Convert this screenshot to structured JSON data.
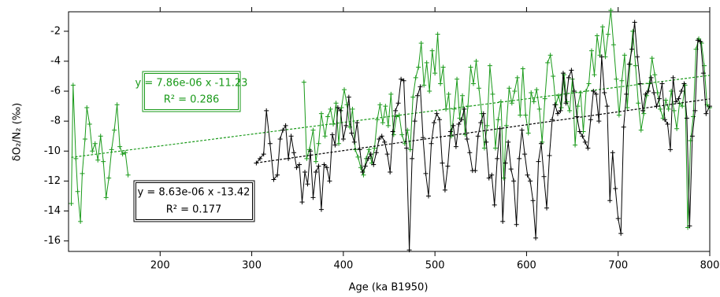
{
  "chart_data": {
    "type": "line",
    "x_label": "Age (ka B1950)",
    "y_label": "δO₂/N₂ (‰)",
    "xlim": [
      100,
      800
    ],
    "xticks": [
      200,
      300,
      400,
      500,
      600,
      700,
      800
    ],
    "ylim": [
      -16.7,
      -0.7
    ],
    "yticks": [
      -2,
      -4,
      -6,
      -8,
      -10,
      -12,
      -14,
      -16
    ],
    "series": [
      {
        "color": "#1a9a1a",
        "trend": {
          "label": "y = 7.86e-06 x -11.23",
          "r2_label": "R² = 0.286",
          "slope": 7.86e-06,
          "intercept": -11.23
        },
        "x": [
          103,
          105,
          108,
          110,
          113,
          115,
          118,
          120,
          123,
          126,
          129,
          132,
          135,
          138,
          141,
          144,
          147,
          150,
          153,
          156,
          159,
          162,
          165,
          250,
          357,
          360,
          363,
          367,
          370,
          373,
          376,
          380,
          383,
          386,
          389,
          392,
          395,
          398,
          401,
          404,
          407,
          410,
          413,
          416,
          419,
          422,
          425,
          428,
          431,
          434,
          437,
          440,
          443,
          446,
          449,
          452,
          455,
          458,
          461,
          464,
          467,
          470,
          473,
          476,
          479,
          482,
          485,
          488,
          491,
          494,
          497,
          500,
          503,
          506,
          509,
          512,
          515,
          518,
          521,
          524,
          527,
          530,
          533,
          536,
          539,
          542,
          545,
          548,
          551,
          554,
          557,
          560,
          563,
          566,
          569,
          572,
          575,
          578,
          581,
          584,
          587,
          590,
          593,
          596,
          599,
          602,
          605,
          608,
          611,
          614,
          617,
          620,
          623,
          626,
          629,
          632,
          635,
          638,
          641,
          644,
          647,
          650,
          653,
          656,
          659,
          662,
          665,
          668,
          671,
          674,
          677,
          680,
          683,
          686,
          689,
          692,
          695,
          698,
          701,
          704,
          707,
          710,
          713,
          716,
          719,
          722,
          725,
          728,
          731,
          734,
          737,
          740,
          743,
          746,
          749,
          752,
          755,
          758,
          761,
          764,
          767,
          770,
          773,
          776,
          779,
          782,
          785,
          788,
          791,
          794,
          797,
          800
        ],
        "values": [
          -13.5,
          -5.6,
          -10.5,
          -12.7,
          -14.7,
          -11.5,
          -9.2,
          -7.1,
          -8.2,
          -10.0,
          -9.5,
          -10.6,
          -9.0,
          -10.7,
          -13.1,
          -11.8,
          -9.9,
          -8.6,
          -6.9,
          -9.7,
          -10.2,
          -10.1,
          -11.6,
          null,
          -5.4,
          -10.5,
          -9.9,
          -8.6,
          -10.7,
          -9.5,
          -7.5,
          -9.0,
          -7.7,
          -7.2,
          -8.2,
          -6.8,
          -9.5,
          -7.1,
          -5.9,
          -6.9,
          -8.4,
          -7.2,
          -9.9,
          -10.4,
          -11.1,
          -11.6,
          -10.5,
          -9.9,
          -10.8,
          -9.8,
          -7.9,
          -6.9,
          -8.1,
          -7.0,
          -8.3,
          -6.2,
          -8.9,
          -7.7,
          -7.6,
          -8.9,
          -9.5,
          -8.6,
          -9.9,
          -6.4,
          -5.1,
          -4.4,
          -2.8,
          -5.6,
          -4.1,
          -6.0,
          -3.3,
          -4.8,
          -2.2,
          -5.5,
          -4.4,
          -7.2,
          -6.2,
          -9.0,
          -7.2,
          -5.2,
          -7.8,
          -6.3,
          -8.9,
          -7.0,
          -4.4,
          -5.5,
          -4.0,
          -5.8,
          -7.5,
          -9.8,
          -8.3,
          -4.3,
          -6.2,
          -9.8,
          -7.9,
          -6.7,
          -11.8,
          -8.3,
          -5.8,
          -6.8,
          -6.0,
          -5.1,
          -7.6,
          -4.5,
          -7.6,
          -8.8,
          -6.1,
          -6.7,
          -5.9,
          -7.2,
          -9.4,
          -6.5,
          -4.1,
          -3.6,
          -5.0,
          -6.9,
          -6.3,
          -7.1,
          -4.9,
          -6.7,
          -7.3,
          -5.2,
          -9.6,
          -7.0,
          -6.1,
          -8.7,
          -6.0,
          -5.5,
          -3.3,
          -4.9,
          -2.3,
          -3.6,
          -1.7,
          -3.7,
          -2.2,
          -0.6,
          -2.9,
          -5.2,
          -7.6,
          -5.3,
          -3.6,
          -7.1,
          -4.2,
          -2.0,
          -4.3,
          -6.8,
          -8.6,
          -7.5,
          -6.3,
          -5.5,
          -3.8,
          -4.9,
          -6.1,
          -7.2,
          -7.8,
          -6.6,
          -7.2,
          -6.0,
          -7.3,
          -8.5,
          -6.8,
          -7.0,
          -5.6,
          -15.1,
          -9.3,
          -7.7,
          -3.2,
          -2.5,
          -2.8,
          -4.3,
          -6.9,
          -7.1
        ]
      },
      {
        "color": "#000000",
        "trend": {
          "label": "y = 8.63e-06 x -13.42",
          "r2_label": "R² = 0.177",
          "slope": 8.63e-06,
          "intercept": -13.42
        },
        "x": [
          305,
          309,
          313,
          316,
          320,
          324,
          328,
          331,
          334,
          337,
          340,
          343,
          346,
          349,
          352,
          355,
          358,
          361,
          364,
          367,
          370,
          373,
          376,
          379,
          382,
          385,
          388,
          391,
          394,
          397,
          400,
          403,
          406,
          409,
          412,
          415,
          418,
          421,
          424,
          427,
          430,
          433,
          436,
          439,
          442,
          445,
          448,
          451,
          454,
          457,
          460,
          463,
          466,
          469,
          472,
          475,
          478,
          481,
          484,
          487,
          490,
          493,
          496,
          499,
          502,
          505,
          508,
          511,
          514,
          517,
          520,
          523,
          526,
          529,
          532,
          535,
          538,
          541,
          544,
          547,
          550,
          553,
          556,
          559,
          562,
          565,
          568,
          571,
          574,
          577,
          580,
          583,
          586,
          589,
          592,
          595,
          598,
          601,
          604,
          607,
          610,
          613,
          616,
          619,
          622,
          625,
          628,
          631,
          634,
          637,
          640,
          643,
          646,
          649,
          652,
          655,
          658,
          661,
          664,
          667,
          670,
          673,
          676,
          679,
          682,
          685,
          688,
          691,
          694,
          697,
          700,
          703,
          706,
          709,
          712,
          715,
          718,
          721,
          724,
          727,
          730,
          733,
          736,
          739,
          742,
          745,
          748,
          751,
          754,
          757,
          760,
          763,
          766,
          769,
          772,
          775,
          778,
          781,
          784,
          787,
          790,
          793,
          796,
          800
        ],
        "values": [
          -10.8,
          -10.5,
          -10.2,
          -7.3,
          -9.5,
          -11.9,
          -11.6,
          -9.2,
          -8.6,
          -8.3,
          -10.5,
          -9.0,
          -10.1,
          -11.1,
          -10.9,
          -13.4,
          -11.4,
          -12.2,
          -10.0,
          -13.1,
          -11.4,
          -11.0,
          -13.9,
          -10.9,
          -11.1,
          -12.0,
          -8.9,
          -9.6,
          -7.1,
          -7.3,
          -9.2,
          -8.3,
          -6.4,
          -8.8,
          -9.4,
          -8.1,
          -9.9,
          -11.4,
          -11.0,
          -10.5,
          -10.2,
          -10.9,
          -10.1,
          -9.2,
          -9.0,
          -9.4,
          -10.2,
          -11.4,
          -8.7,
          -7.3,
          -6.8,
          -5.2,
          -5.3,
          -9.8,
          -16.6,
          -10.5,
          -8.0,
          -6.3,
          -5.7,
          -9.1,
          -11.5,
          -13.0,
          -9.5,
          -8.1,
          -7.5,
          -7.9,
          -10.8,
          -12.6,
          -11.0,
          -8.7,
          -8.3,
          -9.7,
          -8.2,
          -7.9,
          -7.2,
          -9.2,
          -10.1,
          -11.3,
          -11.3,
          -9.0,
          -8.1,
          -7.5,
          -9.4,
          -11.8,
          -11.6,
          -13.6,
          -10.5,
          -8.5,
          -14.7,
          -10.8,
          -9.4,
          -11.2,
          -12.0,
          -14.9,
          -10.5,
          -8.6,
          -10.2,
          -11.6,
          -12.0,
          -13.3,
          -15.8,
          -10.7,
          -9.5,
          -11.7,
          -13.8,
          -10.3,
          -7.9,
          -6.9,
          -7.5,
          -7.3,
          -4.8,
          -6.8,
          -5.1,
          -4.6,
          -6.0,
          -7.7,
          -8.7,
          -9.0,
          -9.4,
          -9.8,
          -7.9,
          -6.0,
          -6.2,
          -8.0,
          -3.7,
          -6.1,
          -7.0,
          -13.3,
          -10.1,
          -12.5,
          -14.5,
          -15.5,
          -8.4,
          -6.2,
          -4.2,
          -3.2,
          -1.4,
          -3.7,
          -5.5,
          -7.3,
          -6.2,
          -6.0,
          -5.1,
          -6.1,
          -7.0,
          -6.5,
          -5.5,
          -7.9,
          -8.2,
          -9.9,
          -5.1,
          -6.7,
          -6.5,
          -6.0,
          -5.5,
          -7.8,
          -15.0,
          -9.0,
          -7.3,
          -2.6,
          -2.7,
          -4.8,
          -7.5,
          -7.0
        ]
      }
    ]
  }
}
